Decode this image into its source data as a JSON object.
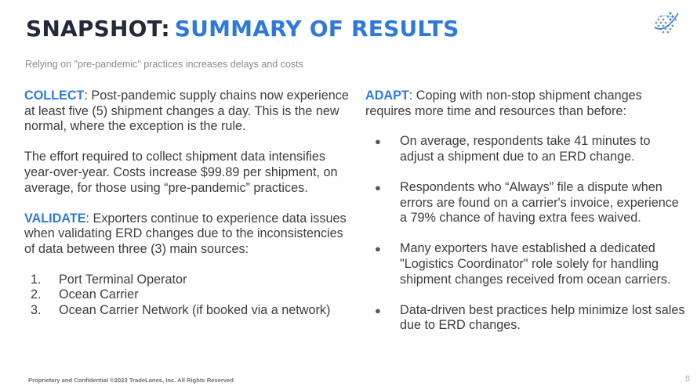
{
  "header": {
    "title_part1": "SNAPSHOT:",
    "title_part2": "SUMMARY OF RESULTS",
    "subtitle": "Relying on \"pre-pandemic\" practices increases delays and costs"
  },
  "left": {
    "collect_label": "COLLECT",
    "collect_text": ":  Post-pandemic supply chains now experience at least five (5) shipment changes a day. This is the new normal, where the exception is the rule.",
    "effort_text": "The effort required to collect shipment data intensifies year-over-year. Costs increase $99.89 per shipment, on average, for those using “pre-pandemic” practices.",
    "validate_label": "VALIDATE",
    "validate_text": ":  Exporters continue to experience data issues when validating ERD changes due to the inconsistencies of data between three (3) main sources:",
    "sources": [
      {
        "num": "1.",
        "text": "Port Terminal Operator"
      },
      {
        "num": "2.",
        "text": "Ocean Carrier"
      },
      {
        "num": "3.",
        "text": "Ocean Carrier Network (if booked via a network)"
      }
    ]
  },
  "right": {
    "adapt_label": "ADAPT",
    "adapt_text": ":  Coping with non-stop shipment changes requires more time and resources than before:",
    "bullets": [
      "On average, respondents take 41 minutes to adjust a shipment due to an ERD change.",
      "Respondents who “Always” file a dispute when errors are found on a carrier's invoice, experience a 79% chance of having extra fees waived.",
      "Many exporters have established a dedicated \"Logistics Coordinator\" role solely for handling shipment changes received from ocean carriers.",
      "Data-driven best practices help minimize lost sales due to ERD changes."
    ],
    "bullet_symbol": "●"
  },
  "footer": {
    "text": "Proprietary and Confidential ©2023 TradeLanes, Inc. All Rights Reserved",
    "page_number": "8"
  },
  "colors": {
    "accent": "#2f7ad8",
    "title": "#222a3a",
    "body": "#3d3d3d"
  }
}
